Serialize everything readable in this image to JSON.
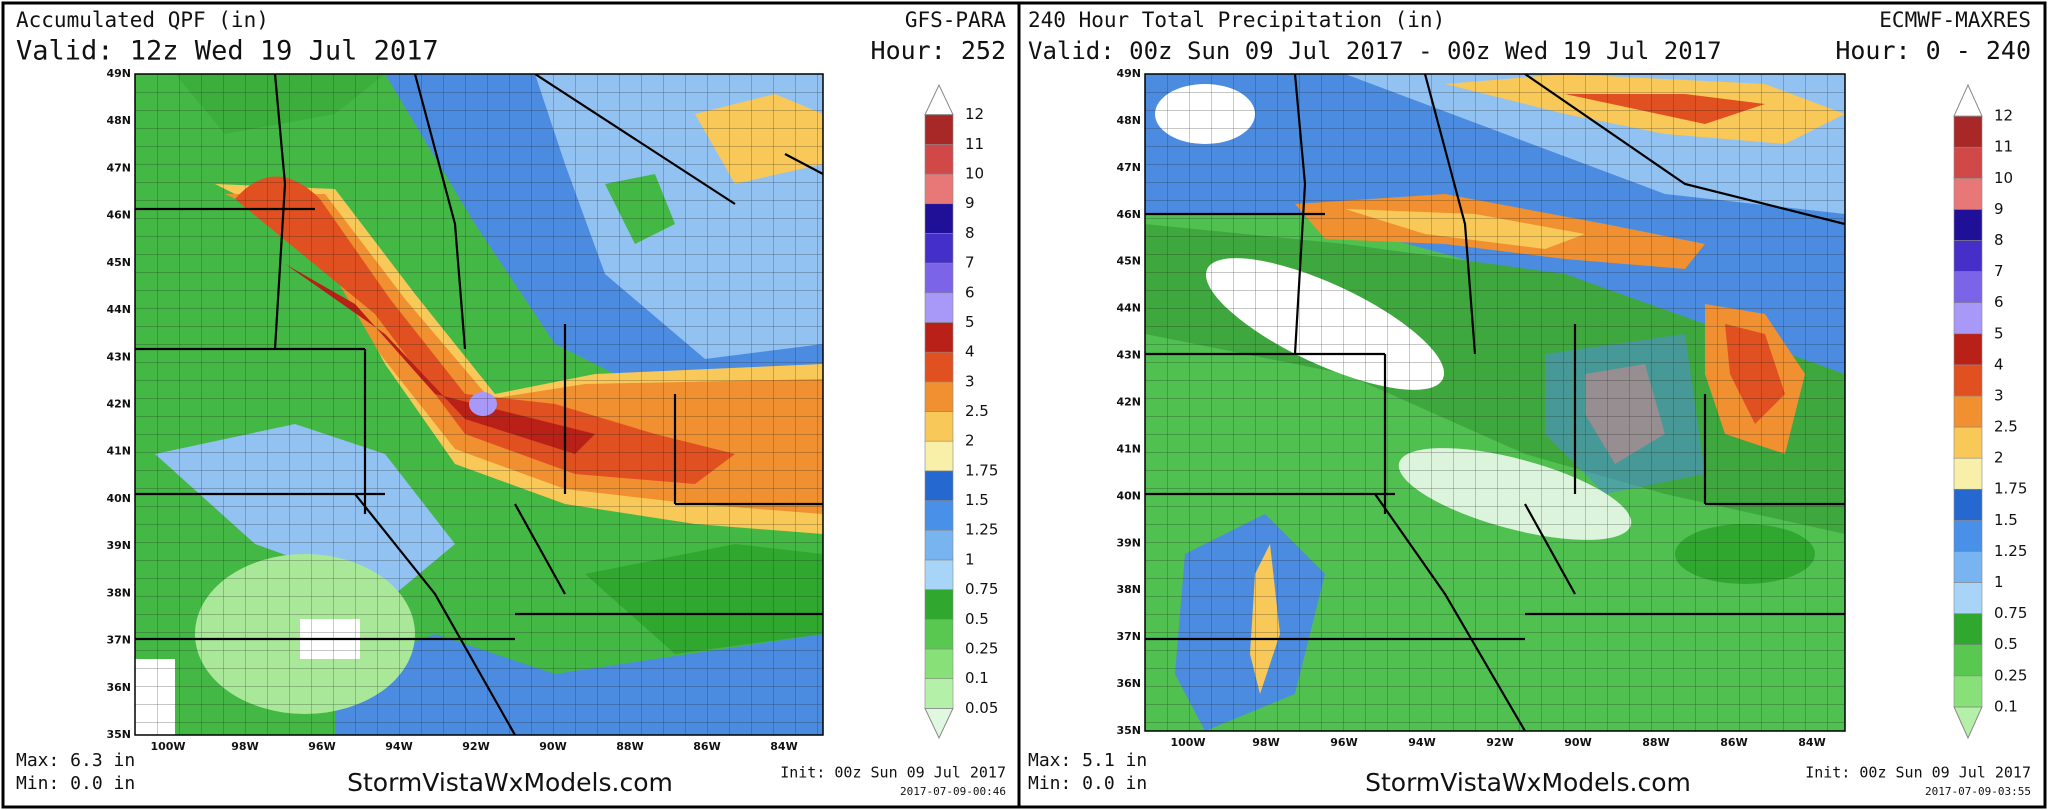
{
  "panels": [
    {
      "title": "Accumulated QPF (in)",
      "valid": "Valid: 12z Wed 19 Jul 2017",
      "model": "GFS-PARA",
      "hour": "Hour: 252",
      "lat_labels": [
        "49N",
        "48N",
        "47N",
        "46N",
        "45N",
        "44N",
        "43N",
        "42N",
        "41N",
        "40N",
        "39N",
        "38N",
        "37N",
        "36N",
        "35N"
      ],
      "lon_labels": [
        "100W",
        "98W",
        "96W",
        "94W",
        "92W",
        "90W",
        "88W",
        "86W",
        "84W"
      ],
      "colorbar": {
        "labels": [
          "0.05",
          "0.1",
          "0.25",
          "0.5",
          "0.75",
          "1",
          "1.25",
          "1.5",
          "1.75",
          "2",
          "2.5",
          "3",
          "4",
          "5",
          "6",
          "7",
          "8",
          "9",
          "10",
          "11",
          "12"
        ],
        "colors": [
          "#e0f8e0",
          "#b4f0a8",
          "#88e078",
          "#58c850",
          "#30a830",
          "#a8d4f8",
          "#78b4f0",
          "#4890e8",
          "#2468d0",
          "#f8f0a8",
          "#f8c858",
          "#f09030",
          "#e05020",
          "#b82018",
          "#a898f8",
          "#7c64e8",
          "#4430c8",
          "#201098",
          "#e87878",
          "#d04848",
          "#a82828",
          "#ffffff"
        ]
      },
      "max": "Max: 6.3 in",
      "min": "Min: 0.0 in",
      "site": "StormVistaWxModels.com",
      "init": "Init: 00z Sun 09 Jul 2017",
      "stamp": "2017-07-09-00:46"
    },
    {
      "title": "240 Hour Total Precipitation (in)",
      "valid": "Valid: 00z Sun 09 Jul 2017 - 00z Wed 19 Jul 2017",
      "model": "ECMWF-MAXRES",
      "hour": "Hour: 0 - 240",
      "lat_labels": [
        "49N",
        "48N",
        "47N",
        "46N",
        "45N",
        "44N",
        "43N",
        "42N",
        "41N",
        "40N",
        "39N",
        "38N",
        "37N",
        "36N",
        "35N"
      ],
      "lon_labels": [
        "100W",
        "98W",
        "96W",
        "94W",
        "92W",
        "90W",
        "88W",
        "86W",
        "84W"
      ],
      "colorbar": {
        "labels": [
          "0.1",
          "0.25",
          "0.5",
          "0.75",
          "1",
          "1.25",
          "1.5",
          "1.75",
          "2",
          "2.5",
          "3",
          "4",
          "5",
          "6",
          "7",
          "8",
          "9",
          "10",
          "11",
          "12"
        ],
        "colors": [
          "#b4f0a8",
          "#88e078",
          "#58c850",
          "#30a830",
          "#a8d4f8",
          "#78b4f0",
          "#4890e8",
          "#2468d0",
          "#f8f0a8",
          "#f8c858",
          "#f09030",
          "#e05020",
          "#b82018",
          "#a898f8",
          "#7c64e8",
          "#4430c8",
          "#201098",
          "#e87878",
          "#d04848",
          "#a82828",
          "#ffffff"
        ]
      },
      "max": "Max: 5.1 in",
      "min": "Min: 0.0 in",
      "site": "StormVistaWxModels.com",
      "init": "Init: 00z Sun 09 Jul 2017",
      "stamp": "2017-07-09-03:55"
    }
  ]
}
